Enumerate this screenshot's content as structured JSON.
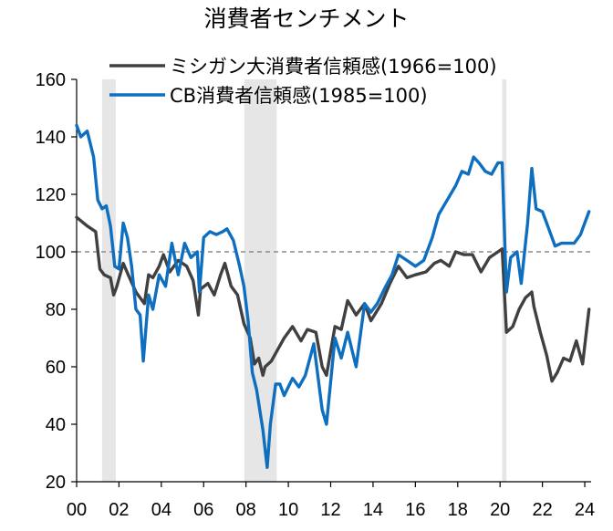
{
  "chart_data": {
    "type": "line",
    "title": "消費者センチメント",
    "xlim": [
      2000,
      2024.3
    ],
    "ylim": [
      20,
      160
    ],
    "x_ticks": [
      2000,
      2002,
      2004,
      2006,
      2008,
      2010,
      2012,
      2014,
      2016,
      2018,
      2020,
      2022,
      2024
    ],
    "x_tick_labels": [
      "00",
      "02",
      "04",
      "06",
      "08",
      "10",
      "12",
      "14",
      "16",
      "18",
      "20",
      "22",
      "24"
    ],
    "y_ticks": [
      20,
      40,
      60,
      80,
      100,
      120,
      140,
      160
    ],
    "y_tick_labels": [
      "20",
      "40",
      "60",
      "80",
      "100",
      "120",
      "140",
      "160"
    ],
    "reference_line": 100,
    "recessions": [
      [
        2001.2,
        2001.85
      ],
      [
        2007.92,
        2009.45
      ],
      [
        2020.1,
        2020.3
      ]
    ],
    "legend_position": "top",
    "colors": {
      "michigan": "#404040",
      "cb": "#0e6fc0",
      "recession": "#e6e6e6",
      "reference": "#8c8c8c"
    },
    "series": [
      {
        "name": "ミシガン大消費者信頼感(1966=100)",
        "key": "michigan",
        "x": [
          2000.0,
          2000.5,
          2000.9,
          2001.1,
          2001.3,
          2001.6,
          2001.75,
          2001.9,
          2002.2,
          2002.5,
          2002.8,
          2003.2,
          2003.4,
          2003.6,
          2003.9,
          2004.1,
          2004.4,
          2004.8,
          2005.2,
          2005.5,
          2005.75,
          2005.85,
          2006.2,
          2006.5,
          2006.8,
          2007.0,
          2007.3,
          2007.6,
          2007.9,
          2008.2,
          2008.4,
          2008.6,
          2008.8,
          2008.9,
          2009.2,
          2009.5,
          2009.8,
          2010.2,
          2010.6,
          2010.9,
          2011.3,
          2011.6,
          2011.8,
          2012.2,
          2012.5,
          2012.8,
          2013.2,
          2013.6,
          2013.9,
          2014.4,
          2014.8,
          2015.2,
          2015.6,
          2016.0,
          2016.5,
          2016.9,
          2017.2,
          2017.6,
          2017.9,
          2018.3,
          2018.7,
          2019.1,
          2019.5,
          2019.9,
          2020.1,
          2020.3,
          2020.6,
          2020.9,
          2021.2,
          2021.5,
          2021.6,
          2021.9,
          2022.2,
          2022.45,
          2022.7,
          2023.0,
          2023.3,
          2023.6,
          2023.9,
          2024.2
        ],
        "values": [
          112,
          109,
          107,
          94,
          92,
          91,
          85,
          88,
          96,
          91,
          86,
          82,
          92,
          91,
          95,
          99,
          93,
          97,
          95,
          90,
          78,
          87,
          89,
          85,
          92,
          96,
          88,
          85,
          75,
          70,
          61,
          63,
          57,
          60,
          62,
          66,
          70,
          74,
          69,
          73,
          72,
          60,
          57,
          74,
          73,
          83,
          78,
          82,
          76,
          82,
          89,
          95,
          91,
          92,
          93,
          96,
          97,
          95,
          100,
          99,
          99,
          93,
          98,
          100,
          101,
          72,
          74,
          80,
          84,
          86,
          81,
          72,
          64,
          55,
          58,
          63,
          62,
          69,
          61,
          80
        ]
      },
      {
        "name": "CB消費者信頼感(1985=100)",
        "key": "cb",
        "x": [
          2000.0,
          2000.2,
          2000.5,
          2000.8,
          2001.0,
          2001.2,
          2001.4,
          2001.6,
          2001.8,
          2002.0,
          2002.2,
          2002.4,
          2002.6,
          2002.8,
          2003.0,
          2003.15,
          2003.4,
          2003.6,
          2003.9,
          2004.2,
          2004.5,
          2004.8,
          2005.1,
          2005.4,
          2005.7,
          2005.8,
          2006.0,
          2006.3,
          2006.6,
          2006.9,
          2007.1,
          2007.4,
          2007.7,
          2007.9,
          2008.1,
          2008.3,
          2008.5,
          2008.8,
          2009.0,
          2009.15,
          2009.4,
          2009.6,
          2009.8,
          2010.2,
          2010.5,
          2010.8,
          2011.2,
          2011.6,
          2011.8,
          2012.2,
          2012.5,
          2012.8,
          2013.2,
          2013.6,
          2013.9,
          2014.2,
          2014.6,
          2014.9,
          2015.2,
          2015.6,
          2016.0,
          2016.4,
          2016.8,
          2017.1,
          2017.5,
          2017.9,
          2018.2,
          2018.5,
          2018.75,
          2019.0,
          2019.3,
          2019.6,
          2019.9,
          2020.1,
          2020.3,
          2020.5,
          2020.8,
          2021.0,
          2021.3,
          2021.5,
          2021.7,
          2022.0,
          2022.3,
          2022.6,
          2022.9,
          2023.2,
          2023.5,
          2023.8,
          2024.0,
          2024.2
        ],
        "values": [
          144,
          140,
          142,
          133,
          118,
          115,
          116,
          109,
          95,
          94,
          110,
          105,
          95,
          80,
          78,
          62,
          85,
          80,
          92,
          88,
          103,
          92,
          103,
          98,
          100,
          86,
          105,
          107,
          106,
          107,
          108,
          104,
          95,
          88,
          76,
          58,
          52,
          38,
          25,
          40,
          54,
          54,
          50,
          56,
          53,
          57,
          68,
          45,
          40,
          70,
          63,
          72,
          60,
          82,
          79,
          82,
          88,
          92,
          99,
          97,
          95,
          97,
          105,
          113,
          118,
          123,
          128,
          127,
          133,
          131,
          128,
          127,
          131,
          131,
          86,
          98,
          100,
          89,
          110,
          129,
          115,
          114,
          108,
          102,
          103,
          103,
          103,
          106,
          110,
          114
        ]
      }
    ]
  }
}
